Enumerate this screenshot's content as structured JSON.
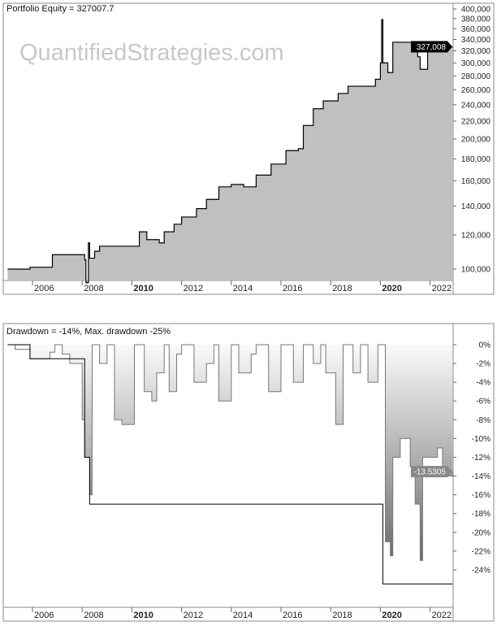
{
  "watermark": "QuantifiedStrategies.com",
  "chart_data": [
    {
      "type": "area",
      "title": "Portfolio Equity = 327007.7",
      "yscale": "log",
      "ylim": [
        92000,
        410000
      ],
      "xlim": [
        2004.95,
        2023.5
      ],
      "yticks": [
        100000,
        120000,
        140000,
        160000,
        180000,
        200000,
        220000,
        240000,
        260000,
        280000,
        300000,
        320000,
        340000,
        360000,
        380000,
        400000
      ],
      "ytick_labels": [
        "100,000",
        "120,000",
        "140,000",
        "160,000",
        "180,000",
        "200,000",
        "220,000",
        "240,000",
        "260,000",
        "280,000",
        "300,000",
        "320,000",
        "340,000",
        "360,000",
        "380,000",
        "400,000"
      ],
      "xticks": [
        2006,
        2008,
        2010,
        2012,
        2014,
        2016,
        2018,
        2020,
        2022
      ],
      "xtick_labels": [
        "2006",
        "2008",
        "2010",
        "2012",
        "2014",
        "2016",
        "2018",
        "2020",
        "2022"
      ],
      "bold_xticks": [
        "2010",
        "2020"
      ],
      "last_value_label": "327,008",
      "series": [
        {
          "name": "Equity",
          "x": [
            2005.0,
            2005.9,
            2006.8,
            2008.1,
            2008.15,
            2008.25,
            2008.3,
            2008.5,
            2008.7,
            2010.3,
            2010.6,
            2011.1,
            2011.3,
            2011.7,
            2012.0,
            2012.6,
            2013.0,
            2013.5,
            2014.0,
            2014.5,
            2015.0,
            2015.6,
            2016.2,
            2016.7,
            2016.9,
            2017.3,
            2017.7,
            2018.3,
            2018.7,
            2019.8,
            2020.0,
            2020.05,
            2020.1,
            2020.3,
            2020.5,
            2021.3,
            2021.5,
            2021.6,
            2021.9,
            2022.3,
            2022.5,
            2022.9
          ],
          "values": [
            100000,
            101000,
            108000,
            105000,
            93000,
            115000,
            106000,
            110000,
            113000,
            122000,
            117000,
            115000,
            122000,
            127000,
            132000,
            138000,
            145000,
            155000,
            157000,
            155000,
            165000,
            175000,
            188000,
            190000,
            215000,
            235000,
            245000,
            255000,
            265000,
            275000,
            300000,
            378000,
            300000,
            285000,
            335000,
            320000,
            310000,
            290000,
            325000,
            335000,
            327000,
            327008
          ]
        }
      ]
    },
    {
      "type": "area",
      "title": "Drawdown = -14%, Max. drawdown -25%",
      "ylim": [
        -26.5,
        1
      ],
      "xlim": [
        2004.95,
        2023.5
      ],
      "yticks": [
        0,
        -2,
        -4,
        -6,
        -8,
        -10,
        -12,
        -14,
        -16,
        -18,
        -20,
        -22,
        -24
      ],
      "ytick_labels": [
        "0%",
        "-2%",
        "-4%",
        "-6%",
        "-8%",
        "-10%",
        "-12%",
        "-14%",
        "-16%",
        "-18%",
        "-20%",
        "-22%",
        "-24%"
      ],
      "xticks": [
        2006,
        2008,
        2010,
        2012,
        2014,
        2016,
        2018,
        2020,
        2022
      ],
      "xtick_labels": [
        "2006",
        "2008",
        "2010",
        "2012",
        "2014",
        "2016",
        "2018",
        "2020",
        "2022"
      ],
      "last_value_label": "-13.5305",
      "series": [
        {
          "name": "Drawdown",
          "x": [
            2005.0,
            2005.3,
            2005.9,
            2006.7,
            2006.9,
            2007.2,
            2007.5,
            2008.0,
            2008.1,
            2008.3,
            2008.4,
            2008.7,
            2009.0,
            2009.3,
            2009.6,
            2010.1,
            2010.5,
            2010.8,
            2011.0,
            2011.3,
            2011.5,
            2011.8,
            2012.0,
            2012.5,
            2013.0,
            2013.3,
            2013.5,
            2014.0,
            2014.3,
            2014.8,
            2015.0,
            2015.5,
            2016.0,
            2016.5,
            2016.9,
            2017.3,
            2017.6,
            2017.8,
            2018.2,
            2018.5,
            2018.9,
            2019.2,
            2019.5,
            2019.9,
            2020.2,
            2020.4,
            2020.5,
            2020.8,
            2021.2,
            2021.4,
            2021.6,
            2021.7,
            2022.0,
            2022.3,
            2022.5,
            2022.9
          ],
          "values": [
            0,
            -0.5,
            -1.5,
            -0.8,
            0,
            -1,
            -2,
            -8,
            -12,
            -16,
            0,
            -2,
            0,
            -8,
            -8.5,
            0,
            -5,
            -6,
            -3,
            0,
            -5,
            -1,
            0,
            -4,
            -2,
            0,
            -6,
            0,
            -3,
            -1,
            0,
            -5,
            0,
            -4,
            0,
            -2,
            0,
            -3,
            -8.5,
            0,
            -3,
            0,
            -4,
            0,
            -21,
            -22.5,
            -12,
            -10,
            -13,
            -17,
            -23,
            -12,
            -12,
            -11,
            -14,
            -13.5305
          ]
        },
        {
          "name": "Max drawdown",
          "x": [
            2005.0,
            2005.9,
            2008.1,
            2008.3,
            2020.0,
            2020.1,
            2022.9
          ],
          "values": [
            0,
            -1.5,
            -12,
            -17,
            -17,
            -25.5,
            -25.5
          ]
        }
      ]
    }
  ]
}
